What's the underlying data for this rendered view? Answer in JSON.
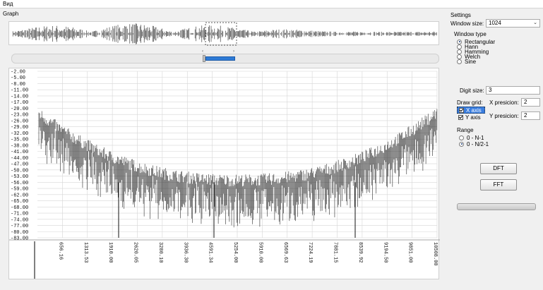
{
  "menu": {
    "view_label": "Вид"
  },
  "graph": {
    "title": "Graph",
    "y_ticks": [
      "-2.00",
      "-5.00",
      "-8.00",
      "-11.00",
      "-14.00",
      "-17.00",
      "-20.00",
      "-23.00",
      "-26.00",
      "-29.00",
      "-32.00",
      "-35.00",
      "-38.00",
      "-41.00",
      "-44.00",
      "-47.00",
      "-50.00",
      "-53.00",
      "-56.00",
      "-59.00",
      "-62.00",
      "-65.00",
      "-68.00",
      "-71.00",
      "-74.00",
      "-77.00",
      "-80.00",
      "-83.00"
    ],
    "x_ticks": [
      "656.16",
      "1313.53",
      "1910.00",
      "2620.05",
      "3280.10",
      "3936.30",
      "4591.34",
      "5254.00",
      "5910.00",
      "6569.63",
      "7224.19",
      "7881.15",
      "8539.92",
      "9194.50",
      "9851.00",
      "10508.00"
    ]
  },
  "settings": {
    "title": "Settings",
    "window_size_label": "Window size:",
    "window_size_value": "1024",
    "window_type_label": "Window type",
    "window_types": [
      "Rectangular",
      "Hann",
      "Hamming",
      "Welch",
      "Sine"
    ],
    "selected_window_type": "Rectangular",
    "digit_size_label": "Digit size:",
    "digit_size_value": "3",
    "draw_grid_label": "Draw grid:",
    "x_axis_label": "X axis",
    "y_axis_label": "Y axis",
    "x_axis_checked": true,
    "y_axis_checked": true,
    "x_precision_label": "X presicion:",
    "x_precision_value": "2",
    "y_precision_label": "Y presicion:",
    "y_precision_value": "2",
    "range_label": "Range",
    "range_options": [
      "0 - N-1",
      "0 - N/2-1"
    ],
    "selected_range": "0 - N/2-1",
    "dft_label": "DFT",
    "fft_label": "FFT"
  },
  "colors": {
    "accent": "#2e7bd6",
    "selection": "#3a7ee0"
  }
}
